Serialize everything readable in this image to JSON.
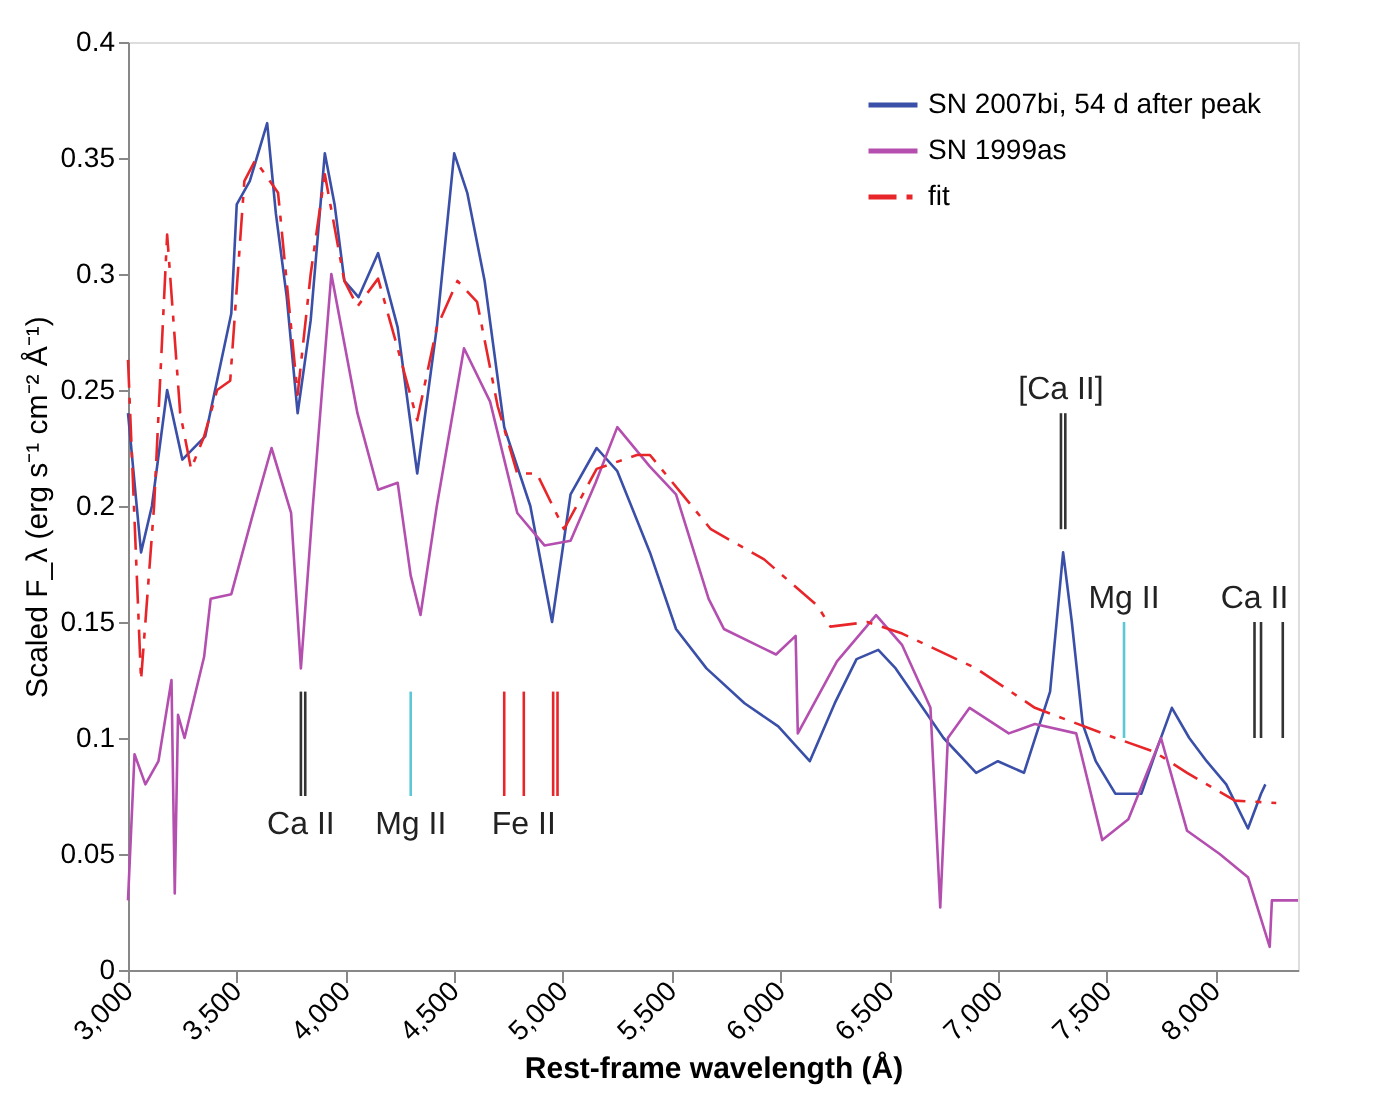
{
  "chart_data": {
    "type": "line",
    "xlabel": "Rest-frame wavelength (Å)",
    "ylabel": "Scaled F_λ (erg s⁻¹ cm⁻² Å⁻¹)",
    "xlim": [
      3000,
      8380
    ],
    "xticks": [
      {
        "value": 3000,
        "label": "3,000"
      },
      {
        "value": 3500,
        "label": "3,500"
      },
      {
        "value": 4000,
        "label": "4,000"
      },
      {
        "value": 4500,
        "label": "4,500"
      },
      {
        "value": 5000,
        "label": "5,000"
      },
      {
        "value": 5500,
        "label": "5,500"
      },
      {
        "value": 6000,
        "label": "6,000"
      },
      {
        "value": 6500,
        "label": "6,500"
      },
      {
        "value": 7000,
        "label": "7,000"
      },
      {
        "value": 7500,
        "label": "7,500"
      },
      {
        "value": 8000,
        "label": "8,000"
      }
    ],
    "ylim": [
      0,
      0.4
    ],
    "yticks": [
      0,
      0.05,
      0.1,
      0.15,
      0.2,
      0.25,
      0.3,
      0.35,
      0.4
    ],
    "grid": false,
    "legend": "top right",
    "marker": "none",
    "series": [
      {
        "name": "SN 2007bi, 54 d after peak",
        "color": "#3a4fa8",
        "line_style": "solid",
        "x": [
          3000,
          3060,
          3110,
          3180,
          3250,
          3355,
          3475,
          3500,
          3560,
          3640,
          3680,
          3730,
          3780,
          3840,
          3905,
          3950,
          3995,
          4060,
          4150,
          4240,
          4330,
          4420,
          4500,
          4560,
          4640,
          4730,
          4850,
          4950,
          5035,
          5155,
          5250,
          5400,
          5520,
          5660,
          5835,
          5990,
          6135,
          6250,
          6350,
          6450,
          6530,
          6640,
          6750,
          6900,
          7000,
          7120,
          7240,
          7270,
          7300,
          7340,
          7390,
          7450,
          7540,
          7660,
          7730,
          7800,
          7880,
          7960,
          8050,
          8150,
          8210,
          8230
        ],
        "values": [
          0.24,
          0.18,
          0.2,
          0.25,
          0.22,
          0.23,
          0.283,
          0.33,
          0.34,
          0.365,
          0.326,
          0.29,
          0.24,
          0.28,
          0.352,
          0.33,
          0.297,
          0.29,
          0.309,
          0.277,
          0.214,
          0.277,
          0.352,
          0.335,
          0.297,
          0.234,
          0.2,
          0.15,
          0.205,
          0.225,
          0.215,
          0.18,
          0.147,
          0.13,
          0.115,
          0.105,
          0.09,
          0.115,
          0.134,
          0.138,
          0.13,
          0.115,
          0.1,
          0.085,
          0.09,
          0.085,
          0.12,
          0.15,
          0.18,
          0.15,
          0.106,
          0.09,
          0.076,
          0.076,
          0.095,
          0.113,
          0.1,
          0.09,
          0.08,
          0.061,
          0.076,
          0.08
        ]
      },
      {
        "name": "SN 1999as",
        "color": "#b44fb0",
        "line_style": "solid",
        "x": [
          3000,
          3030,
          3080,
          3140,
          3200,
          3215,
          3230,
          3260,
          3350,
          3380,
          3475,
          3570,
          3660,
          3750,
          3795,
          3850,
          3935,
          4055,
          4150,
          4240,
          4300,
          4345,
          4420,
          4545,
          4665,
          4790,
          4915,
          5035,
          5150,
          5250,
          5400,
          5520,
          5670,
          5740,
          5980,
          6070,
          6080,
          6260,
          6440,
          6560,
          6690,
          6735,
          6770,
          6870,
          7050,
          7170,
          7360,
          7480,
          7600,
          7750,
          7870,
          8020,
          8150,
          8250,
          8260,
          8380
        ],
        "values": [
          0.03,
          0.093,
          0.08,
          0.09,
          0.125,
          0.033,
          0.11,
          0.1,
          0.135,
          0.16,
          0.162,
          0.195,
          0.225,
          0.197,
          0.13,
          0.2,
          0.3,
          0.24,
          0.207,
          0.21,
          0.17,
          0.153,
          0.2,
          0.268,
          0.245,
          0.197,
          0.183,
          0.185,
          0.21,
          0.234,
          0.217,
          0.205,
          0.16,
          0.147,
          0.136,
          0.144,
          0.102,
          0.133,
          0.153,
          0.14,
          0.113,
          0.027,
          0.1,
          0.113,
          0.102,
          0.106,
          0.102,
          0.056,
          0.065,
          0.1,
          0.06,
          0.05,
          0.04,
          0.01,
          0.03,
          0.03
        ]
      },
      {
        "name": "fit",
        "color": "#e8262a",
        "line_style": "dashed",
        "x": [
          3000,
          3060,
          3120,
          3180,
          3240,
          3290,
          3350,
          3410,
          3470,
          3535,
          3585,
          3690,
          3780,
          3840,
          3905,
          3995,
          4055,
          4150,
          4240,
          4330,
          4420,
          4515,
          4605,
          4700,
          4790,
          4880,
          5005,
          5155,
          5340,
          5400,
          5680,
          5925,
          6170,
          6230,
          6400,
          6560,
          6900,
          7170,
          7540,
          7720,
          7870,
          8090,
          8280
        ],
        "values": [
          0.263,
          0.125,
          0.2,
          0.317,
          0.24,
          0.216,
          0.23,
          0.25,
          0.254,
          0.34,
          0.349,
          0.335,
          0.248,
          0.3,
          0.343,
          0.297,
          0.286,
          0.298,
          0.268,
          0.237,
          0.277,
          0.297,
          0.288,
          0.243,
          0.214,
          0.214,
          0.19,
          0.216,
          0.222,
          0.222,
          0.19,
          0.177,
          0.157,
          0.148,
          0.15,
          0.145,
          0.13,
          0.113,
          0.1,
          0.094,
          0.085,
          0.073,
          0.072
        ]
      },
      {
        "color": "#333333",
        "x": [
          3795,
          3795
        ],
        "values": [
          0.075,
          0.12
        ]
      },
      {
        "color": "#333333",
        "x": [
          3815,
          3815
        ],
        "values": [
          0.075,
          0.12
        ]
      },
      {
        "color": "#5bc8d8",
        "x": [
          4300,
          4300
        ],
        "values": [
          0.075,
          0.12
        ]
      },
      {
        "color": "#e8262a",
        "x": [
          4730,
          4730
        ],
        "values": [
          0.075,
          0.12
        ]
      },
      {
        "color": "#e8262a",
        "x": [
          4820,
          4820
        ],
        "values": [
          0.075,
          0.12
        ]
      },
      {
        "color": "#e8262a",
        "x": [
          4955,
          4955
        ],
        "values": [
          0.075,
          0.12
        ]
      },
      {
        "color": "#e8262a",
        "x": [
          4975,
          4975
        ],
        "values": [
          0.075,
          0.12
        ]
      },
      {
        "color": "#333333",
        "x": [
          7290,
          7290
        ],
        "values": [
          0.19,
          0.24
        ]
      },
      {
        "color": "#333333",
        "x": [
          7310,
          7310
        ],
        "values": [
          0.19,
          0.24
        ]
      },
      {
        "color": "#5bc8d8",
        "x": [
          7580,
          7580
        ],
        "values": [
          0.1,
          0.15
        ]
      },
      {
        "color": "#333333",
        "x": [
          8180,
          8180
        ],
        "values": [
          0.1,
          0.15
        ]
      },
      {
        "color": "#333333",
        "x": [
          8210,
          8210
        ],
        "values": [
          0.1,
          0.15
        ]
      },
      {
        "color": "#333333",
        "x": [
          8310,
          8310
        ],
        "values": [
          0.1,
          0.15
        ]
      }
    ],
    "annotations": [
      {
        "text": "Ca II",
        "x": 3795,
        "y": 0.075
      },
      {
        "text": "Mg II",
        "x": 4300,
        "y": 0.075
      },
      {
        "text": "Fe II",
        "x": 4820,
        "y": 0.075
      },
      {
        "text": "[Ca II]",
        "x": 7290,
        "y": 0.24
      },
      {
        "text": "Mg II",
        "x": 7580,
        "y": 0.15
      },
      {
        "text": "Ca II",
        "x": 8180,
        "y": 0.15
      }
    ]
  }
}
